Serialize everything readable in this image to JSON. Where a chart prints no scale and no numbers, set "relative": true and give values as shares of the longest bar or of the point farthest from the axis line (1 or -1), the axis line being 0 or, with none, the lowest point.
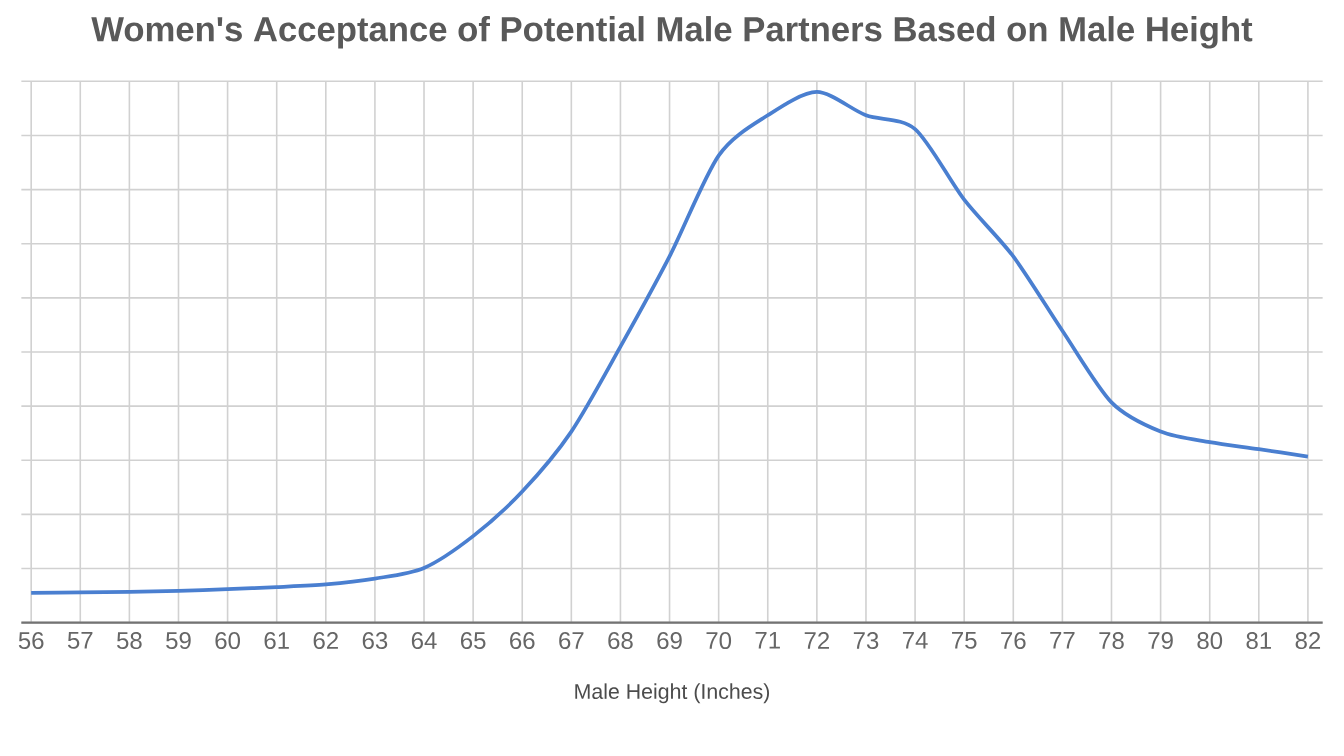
{
  "chart_data": {
    "type": "line",
    "title": "Women's Acceptance of Potential Male Partners Based on Male Height",
    "xlabel": "Male Height (Inches)",
    "relative": true,
    "grid": true,
    "marker": "none",
    "line_style": "solid",
    "x": [
      56,
      57,
      58,
      59,
      60,
      61,
      62,
      63,
      64,
      65,
      66,
      67,
      68,
      69,
      70,
      71,
      72,
      73,
      74,
      75,
      76,
      77,
      78,
      79,
      80,
      81,
      82
    ],
    "xlim": [
      55.8,
      82.3
    ],
    "xticks": [
      56,
      57,
      58,
      59,
      60,
      61,
      62,
      63,
      64,
      65,
      66,
      67,
      68,
      69,
      70,
      71,
      72,
      73,
      74,
      75,
      76,
      77,
      78,
      79,
      80,
      81,
      82
    ],
    "series": [
      {
        "color": "#4a7fd0",
        "values": [
          0.056,
          0.057,
          0.058,
          0.06,
          0.063,
          0.067,
          0.072,
          0.083,
          0.103,
          0.163,
          0.247,
          0.36,
          0.52,
          0.69,
          0.88,
          0.956,
          1.0,
          0.956,
          0.93,
          0.797,
          0.69,
          0.55,
          0.415,
          0.36,
          0.34,
          0.327,
          0.313
        ]
      }
    ]
  }
}
